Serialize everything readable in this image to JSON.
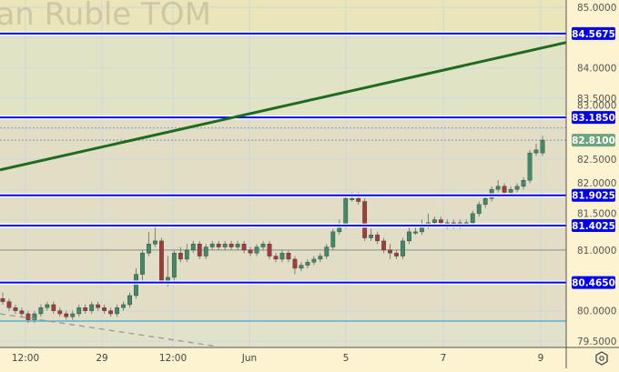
{
  "watermark": "ian Ruble TOM",
  "colors": {
    "up": "#3f8a68",
    "down": "#a33b3b",
    "level_line": "#0000ee",
    "trendline": "#1e6a1e",
    "last_price_badge": "#6fa57e",
    "cyan_line": "#3aa8d8",
    "axis_bg": "#fdf3d0"
  },
  "settings_icon": "gear-hexagon-icon",
  "chart_data": {
    "type": "candlestick",
    "ylim": [
      79.5,
      85.0
    ],
    "grid": true,
    "y_ticks": [
      "85.0000",
      "84.0000",
      "83.5000",
      "83.0000",
      "82.5000",
      "82.0000",
      "81.5000",
      "81.0000",
      "80.0000",
      "79.5000"
    ],
    "x_ticks": [
      "12:00",
      "29",
      "12:00",
      "Jun",
      "5",
      "7",
      "9"
    ],
    "levels": [
      {
        "value": 84.5675,
        "label": "84.5675"
      },
      {
        "value": 83.185,
        "label": "83.1850"
      },
      {
        "value": 81.9025,
        "label": "81.9025"
      },
      {
        "value": 81.4025,
        "label": "81.4025"
      },
      {
        "value": 80.465,
        "label": "80.4650"
      }
    ],
    "last_price": {
      "value": 82.81,
      "label": "82.8100"
    },
    "reference_lines": [
      {
        "value": 81.0,
        "color": "gray"
      },
      {
        "value": 79.83,
        "color": "cyan"
      }
    ],
    "trendline": {
      "start": 82.32,
      "end": 84.42
    },
    "dashed_line": {
      "start": 79.95,
      "end": 79.42
    },
    "candles": [
      [
        80.2,
        80.3,
        80.1,
        80.15
      ],
      [
        80.15,
        80.2,
        80.0,
        80.05
      ],
      [
        80.05,
        80.1,
        79.95,
        80.0
      ],
      [
        80.0,
        80.05,
        79.9,
        79.95
      ],
      [
        79.95,
        80.0,
        79.8,
        79.85
      ],
      [
        79.85,
        80.0,
        79.8,
        79.95
      ],
      [
        79.95,
        80.1,
        79.9,
        80.05
      ],
      [
        80.05,
        80.15,
        80.0,
        80.1
      ],
      [
        80.1,
        80.15,
        79.95,
        80.0
      ],
      [
        80.0,
        80.05,
        79.9,
        79.95
      ],
      [
        79.95,
        80.0,
        79.85,
        79.9
      ],
      [
        79.9,
        80.0,
        79.85,
        79.95
      ],
      [
        79.95,
        80.1,
        79.9,
        80.05
      ],
      [
        80.05,
        80.1,
        79.95,
        80.0
      ],
      [
        80.0,
        80.15,
        79.95,
        80.1
      ],
      [
        80.1,
        80.15,
        80.0,
        80.05
      ],
      [
        80.05,
        80.1,
        79.95,
        80.0
      ],
      [
        80.0,
        80.05,
        79.9,
        79.95
      ],
      [
        79.95,
        80.1,
        79.9,
        80.05
      ],
      [
        80.05,
        80.15,
        80.0,
        80.1
      ],
      [
        80.1,
        80.3,
        80.05,
        80.25
      ],
      [
        80.25,
        80.7,
        80.2,
        80.6
      ],
      [
        80.6,
        81.0,
        80.5,
        80.95
      ],
      [
        80.95,
        81.3,
        80.9,
        81.1
      ],
      [
        81.1,
        81.4,
        81.05,
        81.15
      ],
      [
        81.15,
        81.2,
        80.45,
        80.5
      ],
      [
        80.5,
        80.9,
        80.4,
        80.55
      ],
      [
        80.55,
        81.0,
        80.5,
        80.95
      ],
      [
        80.95,
        81.05,
        80.8,
        80.85
      ],
      [
        80.85,
        81.1,
        80.8,
        81.0
      ],
      [
        81.0,
        81.15,
        80.95,
        81.1
      ],
      [
        81.1,
        81.15,
        80.85,
        80.9
      ],
      [
        80.9,
        81.1,
        80.85,
        81.05
      ],
      [
        81.05,
        81.15,
        81.0,
        81.1
      ],
      [
        81.1,
        81.15,
        81.0,
        81.05
      ],
      [
        81.05,
        81.15,
        81.0,
        81.1
      ],
      [
        81.1,
        81.15,
        81.0,
        81.05
      ],
      [
        81.05,
        81.15,
        81.0,
        81.1
      ],
      [
        81.1,
        81.15,
        80.95,
        81.0
      ],
      [
        81.0,
        81.05,
        80.9,
        80.95
      ],
      [
        80.95,
        81.1,
        80.9,
        81.05
      ],
      [
        81.05,
        81.15,
        81.0,
        81.1
      ],
      [
        81.1,
        81.15,
        80.85,
        80.9
      ],
      [
        80.9,
        80.95,
        80.8,
        80.85
      ],
      [
        80.85,
        81.0,
        80.8,
        80.95
      ],
      [
        80.95,
        81.0,
        80.8,
        80.85
      ],
      [
        80.85,
        80.9,
        80.6,
        80.7
      ],
      [
        80.7,
        80.8,
        80.65,
        80.75
      ],
      [
        80.75,
        80.85,
        80.7,
        80.8
      ],
      [
        80.8,
        80.9,
        80.75,
        80.85
      ],
      [
        80.85,
        80.95,
        80.8,
        80.9
      ],
      [
        80.9,
        81.1,
        80.85,
        81.05
      ],
      [
        81.05,
        81.35,
        81.0,
        81.3
      ],
      [
        81.3,
        81.5,
        81.25,
        81.4
      ],
      [
        81.4,
        81.9,
        81.35,
        81.85
      ],
      [
        81.85,
        81.95,
        81.8,
        81.85
      ],
      [
        81.85,
        81.95,
        81.75,
        81.8
      ],
      [
        81.8,
        81.85,
        81.15,
        81.2
      ],
      [
        81.2,
        81.35,
        81.15,
        81.25
      ],
      [
        81.25,
        81.3,
        81.1,
        81.15
      ],
      [
        81.15,
        81.2,
        80.95,
        81.0
      ],
      [
        81.0,
        81.1,
        80.85,
        80.95
      ],
      [
        80.95,
        81.0,
        80.85,
        80.9
      ],
      [
        80.9,
        81.2,
        80.85,
        81.15
      ],
      [
        81.15,
        81.4,
        81.1,
        81.3
      ],
      [
        81.3,
        81.4,
        81.25,
        81.3
      ],
      [
        81.3,
        81.5,
        81.25,
        81.4
      ],
      [
        81.4,
        81.6,
        81.35,
        81.45
      ],
      [
        81.45,
        81.55,
        81.4,
        81.5
      ],
      [
        81.5,
        81.55,
        81.4,
        81.45
      ],
      [
        81.45,
        81.5,
        81.35,
        81.45
      ],
      [
        81.45,
        81.5,
        81.35,
        81.4
      ],
      [
        81.4,
        81.5,
        81.35,
        81.45
      ],
      [
        81.45,
        81.5,
        81.4,
        81.45
      ],
      [
        81.45,
        81.65,
        81.4,
        81.6
      ],
      [
        81.6,
        81.8,
        81.55,
        81.75
      ],
      [
        81.75,
        81.9,
        81.7,
        81.85
      ],
      [
        81.85,
        82.05,
        81.8,
        82.0
      ],
      [
        82.0,
        82.15,
        81.95,
        82.05
      ],
      [
        82.05,
        82.1,
        81.9,
        81.95
      ],
      [
        81.95,
        82.05,
        81.9,
        82.0
      ],
      [
        82.0,
        82.1,
        81.95,
        82.05
      ],
      [
        82.05,
        82.2,
        82.0,
        82.15
      ],
      [
        82.15,
        82.65,
        82.1,
        82.6
      ],
      [
        82.6,
        82.75,
        82.55,
        82.65
      ],
      [
        82.6,
        82.88,
        82.55,
        82.81
      ]
    ]
  }
}
